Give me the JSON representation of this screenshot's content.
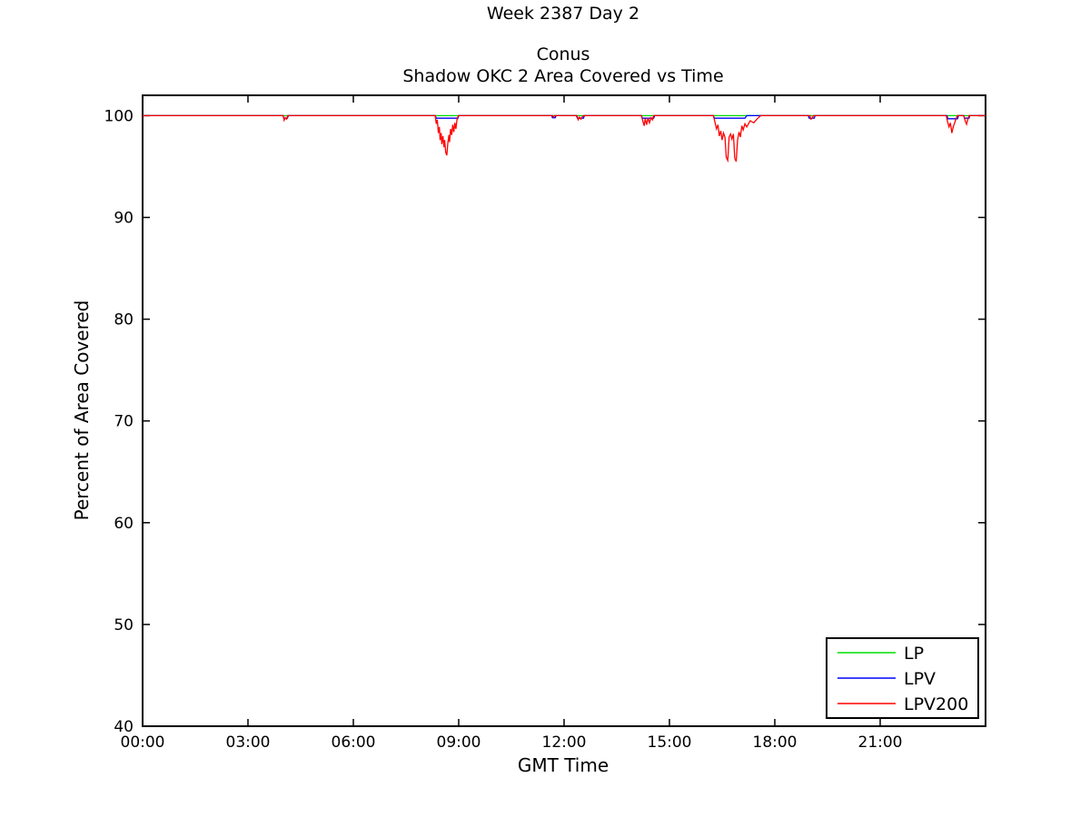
{
  "chart_data": {
    "type": "line",
    "suptitle": "Week 2387 Day 2",
    "title_line1": "Conus",
    "title_line2": "Shadow OKC 2 Area Covered vs Time",
    "xlabel": "GMT Time",
    "ylabel": "Percent of Area Covered",
    "xlim": [
      0,
      24
    ],
    "ylim": [
      40,
      102
    ],
    "grid": false,
    "x_ticks": {
      "values": [
        0,
        3,
        6,
        9,
        12,
        15,
        18,
        21
      ],
      "labels": [
        "00:00",
        "03:00",
        "06:00",
        "09:00",
        "12:00",
        "15:00",
        "18:00",
        "21:00"
      ]
    },
    "y_ticks": {
      "values": [
        40,
        50,
        60,
        70,
        80,
        90,
        100
      ],
      "labels": [
        "40",
        "50",
        "60",
        "70",
        "80",
        "90",
        "100"
      ]
    },
    "legend": {
      "position": "bottom-right",
      "entries": [
        {
          "name": "LP",
          "color": "#00dd00"
        },
        {
          "name": "LPV",
          "color": "#0000ff"
        },
        {
          "name": "LPV200",
          "color": "#ff0000"
        }
      ]
    },
    "series": [
      {
        "name": "LP",
        "color": "#00dd00",
        "points": [
          [
            0,
            100
          ],
          [
            24,
            100
          ]
        ]
      },
      {
        "name": "LPV",
        "color": "#0000ff",
        "points": [
          [
            0,
            100
          ],
          [
            4.0,
            100
          ],
          [
            4.02,
            99.75
          ],
          [
            4.12,
            99.75
          ],
          [
            4.15,
            100
          ],
          [
            8.33,
            100
          ],
          [
            8.36,
            99.75
          ],
          [
            8.98,
            99.75
          ],
          [
            9.0,
            100
          ],
          [
            11.65,
            100
          ],
          [
            11.67,
            99.8
          ],
          [
            11.75,
            99.8
          ],
          [
            11.77,
            100
          ],
          [
            12.35,
            100
          ],
          [
            12.38,
            99.75
          ],
          [
            12.55,
            99.75
          ],
          [
            12.58,
            100
          ],
          [
            14.2,
            100
          ],
          [
            14.23,
            99.75
          ],
          [
            14.55,
            99.75
          ],
          [
            14.58,
            100
          ],
          [
            16.25,
            100
          ],
          [
            16.28,
            99.75
          ],
          [
            17.15,
            99.75
          ],
          [
            17.2,
            100
          ],
          [
            18.95,
            100
          ],
          [
            18.98,
            99.75
          ],
          [
            19.12,
            99.75
          ],
          [
            19.15,
            100
          ],
          [
            22.9,
            100
          ],
          [
            22.93,
            99.7
          ],
          [
            23.2,
            99.7
          ],
          [
            23.23,
            100
          ],
          [
            23.38,
            100
          ],
          [
            23.4,
            99.75
          ],
          [
            23.53,
            99.75
          ],
          [
            23.55,
            100
          ],
          [
            24,
            100
          ]
        ]
      },
      {
        "name": "LPV200",
        "color": "#ff0000",
        "points": [
          [
            0,
            100
          ],
          [
            4.0,
            100
          ],
          [
            4.03,
            99.55
          ],
          [
            4.06,
            99.8
          ],
          [
            4.1,
            99.65
          ],
          [
            4.13,
            100
          ],
          [
            8.33,
            100
          ],
          [
            8.36,
            99.2
          ],
          [
            8.39,
            99.6
          ],
          [
            8.42,
            98.3
          ],
          [
            8.45,
            98.9
          ],
          [
            8.47,
            97.6
          ],
          [
            8.5,
            98.3
          ],
          [
            8.52,
            97.2
          ],
          [
            8.55,
            98.0
          ],
          [
            8.58,
            96.9
          ],
          [
            8.6,
            97.6
          ],
          [
            8.63,
            96.4
          ],
          [
            8.66,
            96.1
          ],
          [
            8.69,
            97.3
          ],
          [
            8.72,
            98.1
          ],
          [
            8.74,
            97.4
          ],
          [
            8.77,
            98.7
          ],
          [
            8.8,
            98.1
          ],
          [
            8.83,
            99.1
          ],
          [
            8.86,
            98.4
          ],
          [
            8.89,
            99.3
          ],
          [
            8.92,
            98.7
          ],
          [
            8.95,
            99.6
          ],
          [
            8.98,
            99.9
          ],
          [
            9.0,
            100
          ],
          [
            11.68,
            100
          ],
          [
            11.7,
            99.85
          ],
          [
            11.73,
            100
          ],
          [
            12.37,
            100
          ],
          [
            12.4,
            99.6
          ],
          [
            12.44,
            99.85
          ],
          [
            12.48,
            99.65
          ],
          [
            12.52,
            99.9
          ],
          [
            12.55,
            100
          ],
          [
            14.2,
            100
          ],
          [
            14.24,
            99.5
          ],
          [
            14.28,
            99.0
          ],
          [
            14.31,
            99.7
          ],
          [
            14.35,
            99.1
          ],
          [
            14.39,
            99.8
          ],
          [
            14.43,
            99.3
          ],
          [
            14.48,
            99.8
          ],
          [
            14.52,
            99.6
          ],
          [
            14.55,
            100
          ],
          [
            16.25,
            100
          ],
          [
            16.3,
            99.3
          ],
          [
            16.34,
            98.7
          ],
          [
            16.38,
            99.1
          ],
          [
            16.42,
            98.0
          ],
          [
            16.46,
            98.5
          ],
          [
            16.5,
            97.6
          ],
          [
            16.54,
            98.3
          ],
          [
            16.58,
            97.9
          ],
          [
            16.62,
            95.9
          ],
          [
            16.66,
            95.6
          ],
          [
            16.7,
            97.9
          ],
          [
            16.74,
            98.2
          ],
          [
            16.78,
            97.7
          ],
          [
            16.82,
            98.2
          ],
          [
            16.86,
            95.8
          ],
          [
            16.9,
            95.5
          ],
          [
            16.94,
            97.6
          ],
          [
            16.98,
            98.4
          ],
          [
            17.02,
            97.9
          ],
          [
            17.06,
            99.0
          ],
          [
            17.1,
            98.6
          ],
          [
            17.15,
            99.2
          ],
          [
            17.2,
            98.9
          ],
          [
            17.3,
            99.5
          ],
          [
            17.4,
            99.3
          ],
          [
            17.5,
            99.7
          ],
          [
            17.6,
            100
          ],
          [
            19.0,
            100
          ],
          [
            19.03,
            99.65
          ],
          [
            19.07,
            99.8
          ],
          [
            19.1,
            100
          ],
          [
            22.88,
            100
          ],
          [
            22.92,
            99.4
          ],
          [
            22.96,
            98.9
          ],
          [
            23.0,
            99.3
          ],
          [
            23.04,
            98.3
          ],
          [
            23.08,
            98.9
          ],
          [
            23.12,
            99.3
          ],
          [
            23.16,
            99.7
          ],
          [
            23.2,
            100
          ],
          [
            23.38,
            100
          ],
          [
            23.42,
            99.5
          ],
          [
            23.46,
            99.15
          ],
          [
            23.5,
            99.7
          ],
          [
            23.53,
            100
          ],
          [
            24,
            100
          ]
        ]
      }
    ]
  }
}
